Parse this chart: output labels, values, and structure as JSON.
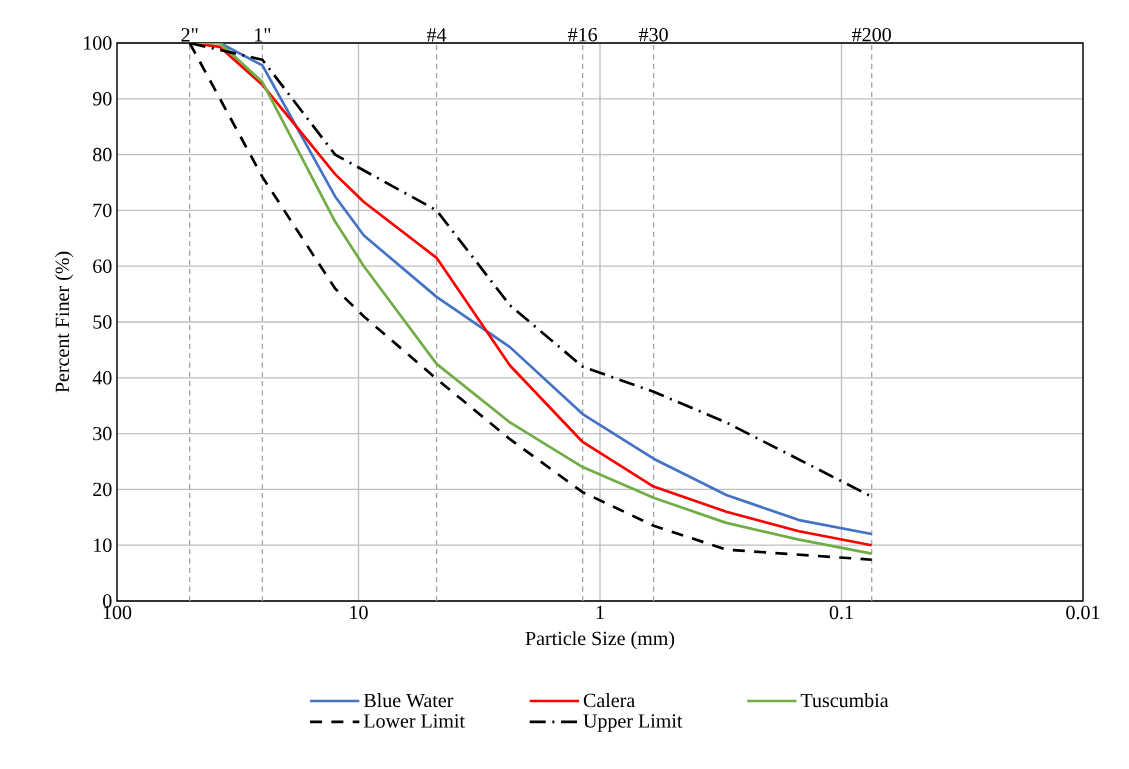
{
  "chart_data": {
    "type": "line",
    "xlabel": "Particle Size (mm)",
    "ylabel": "Percent Finer (%)",
    "log": "x",
    "grid": true,
    "legend": "bottom",
    "xlim": [
      100,
      0.01
    ],
    "xticks": [
      100,
      10,
      1,
      0.1,
      0.01
    ],
    "ylim": [
      0,
      100
    ],
    "yticks": [
      0,
      10,
      20,
      30,
      40,
      50,
      60,
      70,
      80,
      90,
      100
    ],
    "series": [
      {
        "name": "Blue Water",
        "color": "#4472c4",
        "line_style": "solid",
        "x": [
          50,
          37.5,
          25,
          12.5,
          9.5,
          4.75,
          2.36,
          1.18,
          0.6,
          0.3,
          0.15,
          0.075
        ],
        "values": [
          100,
          100,
          96,
          72.5,
          65.5,
          54.5,
          45.5,
          33.5,
          25.5,
          19,
          14.5,
          12
        ]
      },
      {
        "name": "Calera",
        "color": "#ff0000",
        "line_style": "solid",
        "x": [
          50,
          37.5,
          25,
          12.5,
          9.5,
          4.75,
          2.36,
          1.18,
          0.6,
          0.3,
          0.15,
          0.075
        ],
        "values": [
          100,
          99.3,
          92.5,
          76.5,
          71.5,
          61.5,
          42.2,
          28.5,
          20.5,
          16,
          12.5,
          10
        ]
      },
      {
        "name": "Tuscumbia",
        "color": "#70ad47",
        "line_style": "solid",
        "x": [
          50,
          37.5,
          25,
          12.5,
          9.5,
          4.75,
          2.36,
          1.18,
          0.6,
          0.3,
          0.15,
          0.075
        ],
        "values": [
          100,
          100,
          93,
          68,
          60,
          42.5,
          32,
          24,
          18.5,
          14,
          11,
          8.5
        ]
      },
      {
        "name": "Lower Limit",
        "color": "#000000",
        "line_style": "dashed",
        "x": [
          50,
          25,
          12.5,
          9.5,
          4.75,
          2.36,
          1.18,
          0.6,
          0.3,
          0.075
        ],
        "values": [
          100,
          76,
          56,
          51,
          39.8,
          29,
          19.5,
          13.5,
          9.2,
          7.4
        ]
      },
      {
        "name": "Upper Limit",
        "color": "#000000",
        "line_style": "dashdot",
        "x": [
          50,
          25,
          12.5,
          4.75,
          2.36,
          1.18,
          0.6,
          0.3,
          0.075
        ],
        "values": [
          100,
          97,
          80,
          70,
          53,
          42,
          37.5,
          32,
          18.7
        ]
      }
    ],
    "ref_lines": [
      {
        "axis": "x",
        "value": 50,
        "color": "#a6a6a6",
        "line_style": "dashed"
      },
      {
        "axis": "x",
        "value": 25,
        "color": "#a6a6a6",
        "line_style": "dashed"
      },
      {
        "axis": "x",
        "value": 4.75,
        "color": "#a6a6a6",
        "line_style": "dashed"
      },
      {
        "axis": "x",
        "value": 1.18,
        "color": "#a6a6a6",
        "line_style": "dashed"
      },
      {
        "axis": "x",
        "value": 0.6,
        "color": "#a6a6a6",
        "line_style": "dashed"
      },
      {
        "axis": "x",
        "value": 0.075,
        "color": "#a6a6a6",
        "line_style": "dashed"
      }
    ],
    "annotations": [
      {
        "text": "2\"",
        "x": 50,
        "y": 100
      },
      {
        "text": "1\"",
        "x": 25,
        "y": 100
      },
      {
        "text": "#4",
        "x": 4.75,
        "y": 100
      },
      {
        "text": "#16",
        "x": 1.18,
        "y": 100
      },
      {
        "text": "#30",
        "x": 0.6,
        "y": 100
      },
      {
        "text": "#200",
        "x": 0.075,
        "y": 100
      }
    ]
  }
}
